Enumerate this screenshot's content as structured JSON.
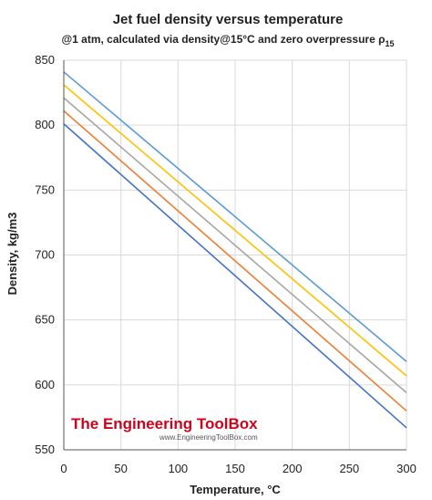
{
  "chart_data": {
    "type": "line",
    "title": "Jet fuel density versus temperature",
    "subtitle": "@1 atm, calculated via density@15°C and zero overpressure ρ",
    "subtitle_subscript": "15",
    "xlabel": "Temperature, °C",
    "ylabel": "Density, kg/m3",
    "xlim": [
      0,
      300
    ],
    "ylim": [
      550,
      850
    ],
    "x_ticks": [
      "0",
      "50",
      "100",
      "150",
      "200",
      "250",
      "300"
    ],
    "y_ticks": [
      "550",
      "600",
      "650",
      "700",
      "750",
      "800",
      "850"
    ],
    "grid": true,
    "series": [
      {
        "color": "#5b9bd5",
        "x": [
          0,
          300
        ],
        "values": [
          841,
          618
        ]
      },
      {
        "color": "#ffc000",
        "x": [
          0,
          300
        ],
        "values": [
          831,
          607
        ]
      },
      {
        "color": "#a5a5a5",
        "x": [
          0,
          300
        ],
        "values": [
          821,
          594
        ]
      },
      {
        "color": "#ed7d31",
        "x": [
          0,
          300
        ],
        "values": [
          811,
          580
        ]
      },
      {
        "color": "#4472c4",
        "x": [
          0,
          300
        ],
        "values": [
          801,
          567
        ]
      }
    ]
  },
  "watermark": {
    "brand": "The Engineering ToolBox",
    "url": "www.EngineeringToolBox.com",
    "color": "#d0021b"
  }
}
